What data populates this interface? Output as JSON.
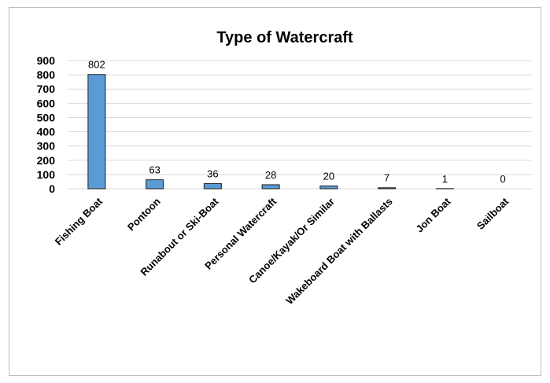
{
  "chart_data": {
    "type": "bar",
    "title": "Type of Watercraft",
    "xlabel": "",
    "ylabel": "",
    "ylim": [
      0,
      900
    ],
    "yticks": [
      0,
      100,
      200,
      300,
      400,
      500,
      600,
      700,
      800,
      900
    ],
    "ytick_labels": [
      "0",
      "100",
      "200",
      "300",
      "400",
      "500",
      "600",
      "700",
      "800",
      "900"
    ],
    "grid": true,
    "legend": "none",
    "categories": [
      "Fishing Boat",
      "Pontoon",
      "Runabout or Ski-Boat",
      "Personal Watercraft",
      "Canoe/Kayak/Or Similar",
      "Wakeboard Boat with Ballasts",
      "Jon Boat",
      "Sailboat"
    ],
    "values": [
      802,
      63,
      36,
      28,
      20,
      7,
      1,
      0
    ],
    "data_labels": [
      "802",
      "63",
      "36",
      "28",
      "20",
      "7",
      "1",
      "0"
    ],
    "bar_color": "#5b9bd5",
    "bar_edge_color": "#1f1f1f"
  }
}
